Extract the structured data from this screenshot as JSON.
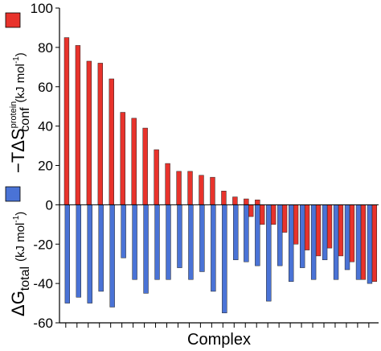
{
  "chart_data": {
    "type": "bar",
    "xlabel": "Complex",
    "ylim": [
      -60,
      100
    ],
    "yticks": [
      -60,
      -40,
      -20,
      0,
      20,
      40,
      60,
      80,
      100
    ],
    "x_ticks_labeled": false,
    "grid": false,
    "legend_position": "left, beside y-axis",
    "series": [
      {
        "key": "conf",
        "color": "#e8332c",
        "values": [
          85,
          81,
          73,
          72,
          64,
          47,
          44,
          39,
          28,
          21,
          17,
          17,
          15,
          14,
          7,
          4,
          3,
          2.5,
          0,
          0,
          0,
          0,
          0,
          0,
          0,
          0,
          0,
          0,
          0,
          0,
          0,
          0,
          0,
          0,
          0,
          0,
          0,
          0,
          0,
          0,
          0,
          0,
          0,
          0,
          0,
          0,
          0,
          0,
          0,
          0,
          0,
          0,
          0,
          0,
          0,
          0,
          0,
          0,
          0,
          0,
          0,
          0,
          0,
          0,
          0,
          0,
          0,
          0,
          0,
          0
        ]
      },
      {
        "key": "total",
        "color": "#4a73d6",
        "values": [
          -50,
          -47,
          -50,
          -44,
          -52,
          -27,
          -38,
          -45,
          -38,
          -38,
          -32,
          -38,
          -34,
          -44,
          -55,
          -28,
          -29,
          -31,
          -49,
          -31,
          -39,
          -32,
          -38,
          -28,
          -38,
          -33,
          -38,
          -40
        ]
      },
      {
        "key": "conf_neg",
        "color": "#e8332c",
        "values": [
          -6,
          -10,
          -10,
          -14,
          -20,
          -23,
          -26,
          -22,
          -26,
          -29,
          -38,
          -39
        ]
      }
    ],
    "y_label_top": {
      "prefix": "−TΔS",
      "superscript": "protein",
      "subscript": "conf",
      "units": "(kJ mol",
      "units_sup": "-1",
      "units_close": ")"
    },
    "y_label_bottom": {
      "prefix": "ΔG",
      "subscript": "total",
      "units": "(kJ mol",
      "units_sup": "-1",
      "units_close": ")"
    }
  }
}
